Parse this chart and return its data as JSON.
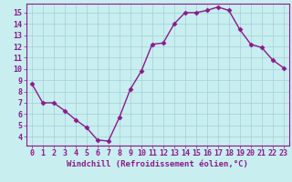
{
  "x": [
    0,
    1,
    2,
    3,
    4,
    5,
    6,
    7,
    8,
    9,
    10,
    11,
    12,
    13,
    14,
    15,
    16,
    17,
    18,
    19,
    20,
    21,
    22,
    23
  ],
  "y": [
    8.7,
    7.0,
    7.0,
    6.3,
    5.5,
    4.8,
    3.7,
    3.6,
    5.7,
    8.2,
    9.8,
    12.2,
    12.3,
    14.0,
    15.0,
    15.0,
    15.2,
    15.5,
    15.2,
    13.5,
    12.2,
    11.9,
    10.8,
    10.1
  ],
  "line_color": "#8b1a8b",
  "marker": "D",
  "marker_size": 2.5,
  "bg_color": "#c8eef0",
  "grid_color": "#a0d0d8",
  "xlabel": "Windchill (Refroidissement éolien,°C)",
  "xlabel_color": "#8b1a8b",
  "xlabel_fontsize": 6.5,
  "tick_color": "#8b1a8b",
  "tick_fontsize": 6.0,
  "ylim": [
    3.2,
    15.8
  ],
  "xlim": [
    -0.5,
    23.5
  ],
  "yticks": [
    4,
    5,
    6,
    7,
    8,
    9,
    10,
    11,
    12,
    13,
    14,
    15
  ],
  "xticks": [
    0,
    1,
    2,
    3,
    4,
    5,
    6,
    7,
    8,
    9,
    10,
    11,
    12,
    13,
    14,
    15,
    16,
    17,
    18,
    19,
    20,
    21,
    22,
    23
  ],
  "spine_color": "#8b1a8b",
  "line_width": 1.0
}
